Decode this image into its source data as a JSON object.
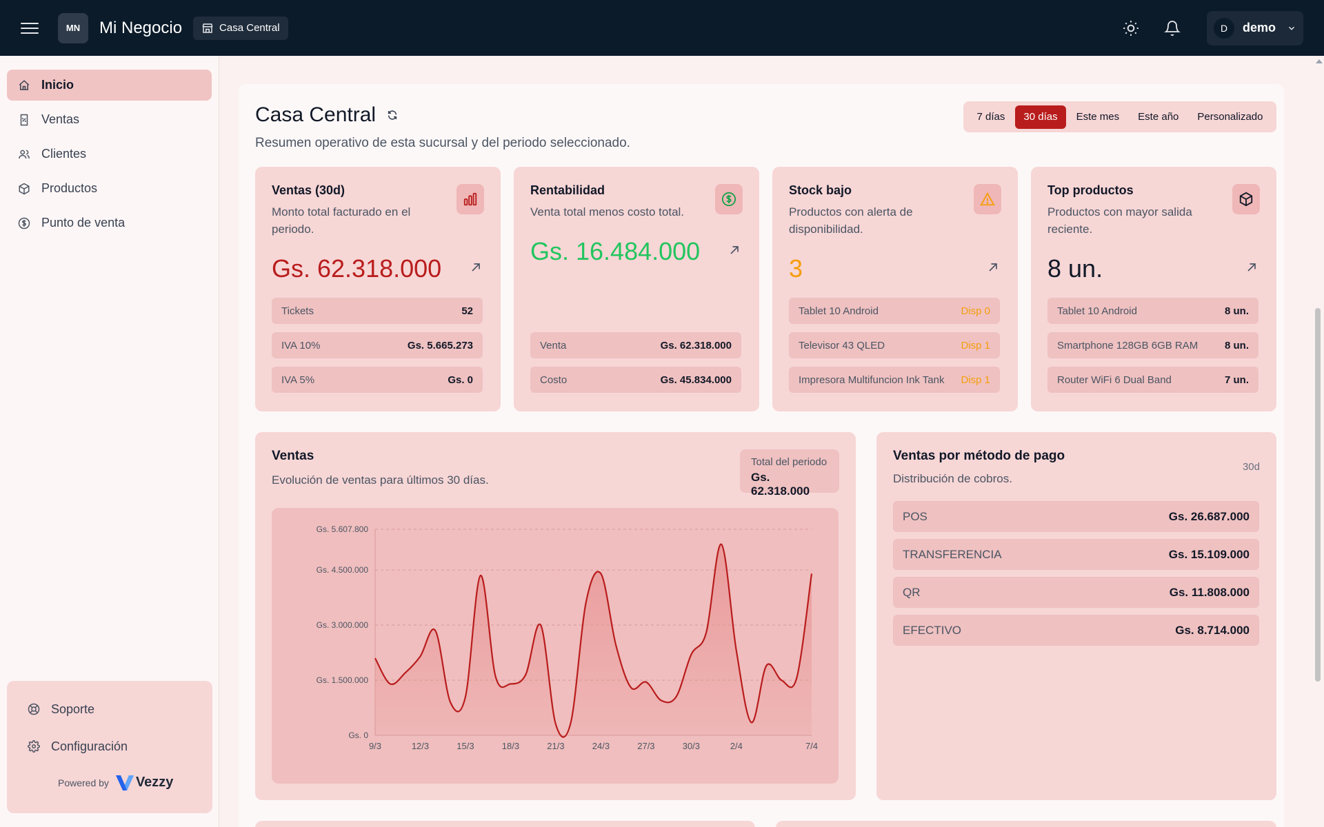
{
  "header": {
    "logo_initials": "MN",
    "brand": "Mi Negocio",
    "branch": "Casa Central",
    "user_initial": "D",
    "user_name": "demo"
  },
  "sidebar": {
    "items": [
      {
        "label": "Inicio",
        "icon": "home-icon"
      },
      {
        "label": "Ventas",
        "icon": "receipt-icon"
      },
      {
        "label": "Clientes",
        "icon": "users-icon"
      },
      {
        "label": "Productos",
        "icon": "box-icon"
      },
      {
        "label": "Punto de venta",
        "icon": "dollar-circle-icon"
      }
    ],
    "footer_items": [
      {
        "label": "Soporte",
        "icon": "lifebuoy-icon"
      },
      {
        "label": "Configuración",
        "icon": "gear-icon"
      }
    ],
    "powered_by": "Powered by",
    "powered_brand": "Vezzy"
  },
  "page": {
    "title": "Casa Central",
    "subtitle": "Resumen operativo de esta sucursal y del periodo seleccionado.",
    "periods": [
      "7 días",
      "30 días",
      "Este mes",
      "Este año",
      "Personalizado"
    ],
    "active_period": "30 días"
  },
  "kpis": {
    "ventas": {
      "title": "Ventas (30d)",
      "desc": "Monto total facturado en el periodo.",
      "value": "Gs. 62.318.000",
      "rows": [
        {
          "label": "Tickets",
          "value": "52"
        },
        {
          "label": "IVA 10%",
          "value": "Gs. 5.665.273"
        },
        {
          "label": "IVA 5%",
          "value": "Gs. 0"
        }
      ]
    },
    "rentabilidad": {
      "title": "Rentabilidad",
      "desc": "Venta total menos costo total.",
      "value": "Gs. 16.484.000",
      "rows": [
        {
          "label": "Venta",
          "value": "Gs. 62.318.000"
        },
        {
          "label": "Costo",
          "value": "Gs. 45.834.000"
        }
      ]
    },
    "stock": {
      "title": "Stock bajo",
      "desc": "Productos con alerta de disponibilidad.",
      "value": "3",
      "rows": [
        {
          "label": "Tablet 10 Android",
          "value": "Disp 0"
        },
        {
          "label": "Televisor 43 QLED",
          "value": "Disp 1"
        },
        {
          "label": "Impresora Multifuncion Ink Tank",
          "value": "Disp 1"
        }
      ]
    },
    "top": {
      "title": "Top productos",
      "desc": "Productos con mayor salida reciente.",
      "value": "8 un.",
      "rows": [
        {
          "label": "Tablet 10 Android",
          "value": "8 un."
        },
        {
          "label": "Smartphone 128GB 6GB RAM",
          "value": "8 un."
        },
        {
          "label": "Router WiFi 6 Dual Band",
          "value": "7 un."
        }
      ]
    }
  },
  "sales_chart": {
    "title": "Ventas",
    "subtitle": "Evolución de ventas para últimos 30 días.",
    "total_label": "Total del periodo",
    "total_value": "Gs. 62.318.000"
  },
  "payments": {
    "title": "Ventas por método de pago",
    "subtitle": "Distribución de cobros.",
    "badge": "30d",
    "rows": [
      {
        "label": "POS",
        "value": "Gs. 26.687.000"
      },
      {
        "label": "TRANSFERENCIA",
        "value": "Gs. 15.109.000"
      },
      {
        "label": "QR",
        "value": "Gs. 11.808.000"
      },
      {
        "label": "EFECTIVO",
        "value": "Gs. 8.714.000"
      }
    ]
  },
  "chart_data": {
    "type": "area",
    "x": [
      "9/3",
      "10/3",
      "11/3",
      "12/3",
      "13/3",
      "14/3",
      "15/3",
      "16/3",
      "17/3",
      "18/3",
      "19/3",
      "20/3",
      "21/3",
      "22/3",
      "23/3",
      "24/3",
      "25/3",
      "26/3",
      "27/3",
      "28/3",
      "29/3",
      "30/3",
      "31/3",
      "1/4",
      "2/4",
      "3/4",
      "4/4",
      "5/4",
      "6/4",
      "7/4"
    ],
    "x_tick_labels": [
      "9/3",
      "12/3",
      "15/3",
      "18/3",
      "21/3",
      "24/3",
      "27/3",
      "30/3",
      "2/4",
      "7/4"
    ],
    "values": [
      2100000,
      1400000,
      1700000,
      2150000,
      2850000,
      900000,
      1050000,
      4350000,
      1600000,
      1400000,
      1650000,
      3000000,
      300000,
      350000,
      3600000,
      4400000,
      2450000,
      1300000,
      1450000,
      950000,
      1050000,
      2200000,
      2800000,
      5200000,
      2300000,
      350000,
      1900000,
      1500000,
      1550000,
      4400000
    ],
    "yticks": [
      "Gs. 0",
      "Gs. 1.500.000",
      "Gs. 3.000.000",
      "Gs. 4.500.000",
      "Gs. 5.607.800"
    ],
    "ytick_values": [
      0,
      1500000,
      3000000,
      4500000,
      5607800
    ],
    "ylim": [
      0,
      5607800
    ],
    "colors": {
      "line": "#b91c1c",
      "fill": "#e88f8f"
    }
  }
}
